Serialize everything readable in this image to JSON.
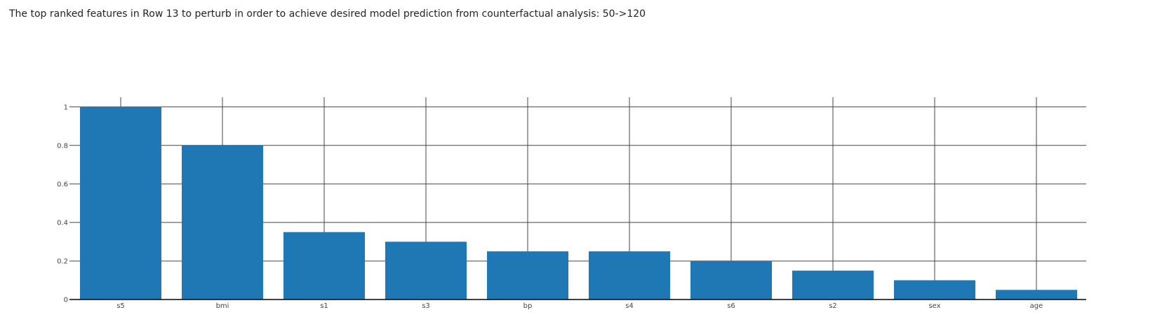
{
  "caption": "The top ranked features in Row 13 to perturb in order to achieve desired model prediction from counterfactual analysis: 50->120",
  "chart_data": {
    "type": "bar",
    "categories": [
      "s5",
      "bmi",
      "s1",
      "s3",
      "bp",
      "s4",
      "s6",
      "s2",
      "sex",
      "age"
    ],
    "values": [
      1.0,
      0.8,
      0.35,
      0.3,
      0.25,
      0.25,
      0.2,
      0.15,
      0.1,
      0.05
    ],
    "ylim": [
      0,
      1.05
    ],
    "yticks": [
      0,
      0.2,
      0.4,
      0.6,
      0.8,
      1
    ],
    "ytick_labels": [
      "0",
      "0.2",
      "0.4",
      "0.6",
      "0.8",
      "1"
    ],
    "grid": true,
    "bar_color": "#1f77b4",
    "grid_color": "#444444",
    "axis_color": "#000000"
  }
}
